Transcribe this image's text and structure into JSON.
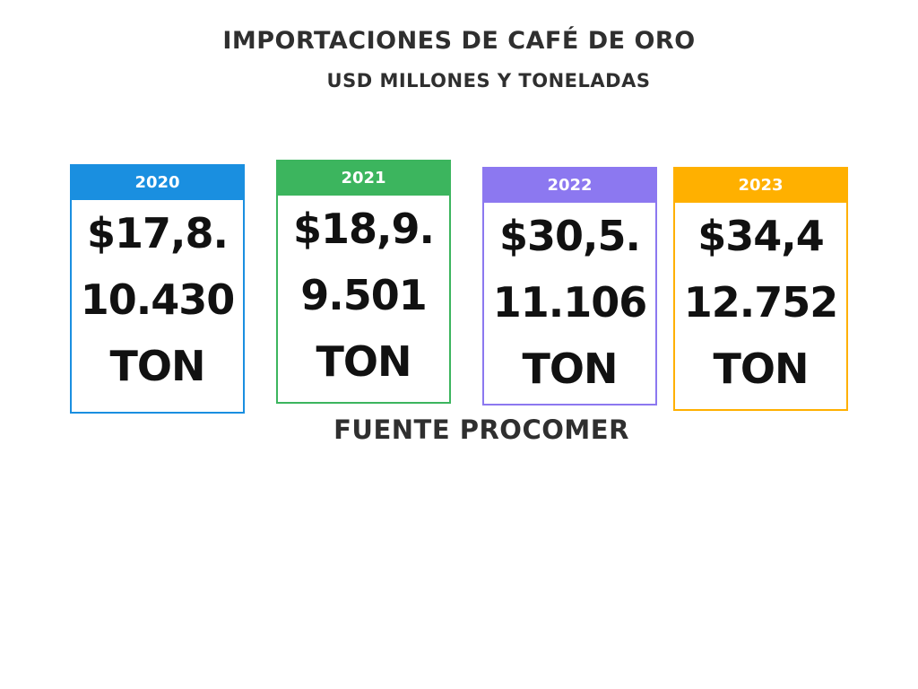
{
  "header": {
    "title": "IMPORTACIONES DE CAFÉ DE ORO",
    "subtitle": "USD MILLONES Y TONELADAS"
  },
  "cards": [
    {
      "year": "2020",
      "amount": "$17,8.",
      "tons": "10.430",
      "unit": "TON"
    },
    {
      "year": "2021",
      "amount": "$18,9.",
      "tons": "9.501",
      "unit": "TON"
    },
    {
      "year": "2022",
      "amount": "$30,5.",
      "tons": "11.106",
      "unit": "TON"
    },
    {
      "year": "2023",
      "amount": "$34,4",
      "tons": "12.752",
      "unit": "TON"
    }
  ],
  "footer": {
    "source": "FUENTE PROCOMER"
  }
}
